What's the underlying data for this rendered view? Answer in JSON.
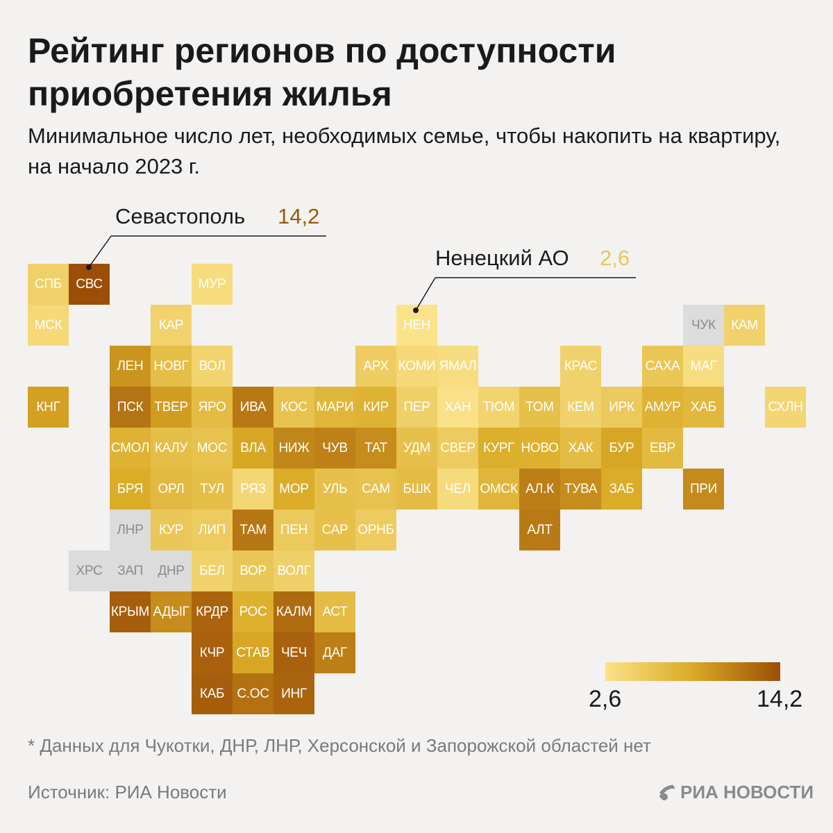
{
  "header": {
    "title": "Рейтинг регионов по доступности приобретения жилья",
    "subtitle": "Минимальное число лет, необходимых семье, чтобы накопить на квартиру, на начало 2023 г."
  },
  "colors": {
    "scale_min": "#fbe38a",
    "scale_mid": "#d9aa25",
    "scale_max": "#9c4e07",
    "nodata": "#dcdcdc",
    "callout_max": "#9a5a0c",
    "callout_min": "#e9c65a"
  },
  "chart_data": {
    "type": "heatmap",
    "title": "Рейтинг регионов по доступности приобретения жилья",
    "value_range": [
      2.6,
      14.2
    ],
    "legend": {
      "min_label": "2,6",
      "max_label": "14,2"
    },
    "annotations": [
      {
        "region": "СВС",
        "name": "Севастополь",
        "value_label": "14,2"
      },
      {
        "region": "НЕН",
        "name": "Ненецкий АО",
        "value_label": "2,6"
      }
    ],
    "rows": [
      [
        {
          "col": 0,
          "label": "СПБ",
          "value": 4.5
        },
        {
          "col": 1,
          "label": "СВС",
          "value": 14.2
        },
        {
          "col": 4,
          "label": "МУР",
          "value": 3.3
        }
      ],
      [
        {
          "col": 0,
          "label": "МСК",
          "value": 3.7
        },
        {
          "col": 3,
          "label": "КАР",
          "value": 4.3
        },
        {
          "col": 9,
          "label": "НЕН",
          "value": 2.6
        },
        {
          "col": 16,
          "label": "ЧУК",
          "value": null
        },
        {
          "col": 17,
          "label": "КАМ",
          "value": 4.4
        }
      ],
      [
        {
          "col": 2,
          "label": "ЛЕН",
          "value": 9.8
        },
        {
          "col": 3,
          "label": "НОВГ",
          "value": 6.4
        },
        {
          "col": 4,
          "label": "ВОЛ",
          "value": 4.2
        },
        {
          "col": 8,
          "label": "АРХ",
          "value": 4.9
        },
        {
          "col": 9,
          "label": "КОМИ",
          "value": 3.7
        },
        {
          "col": 10,
          "label": "ЯМАЛ",
          "value": 3.2
        },
        {
          "col": 13,
          "label": "КРАС",
          "value": 4.4
        },
        {
          "col": 15,
          "label": "САХА",
          "value": 5.6
        },
        {
          "col": 16,
          "label": "МАГ",
          "value": 3.2
        }
      ],
      [
        {
          "col": 0,
          "label": "КНГ",
          "value": 9.0
        },
        {
          "col": 2,
          "label": "ПСК",
          "value": 11.8
        },
        {
          "col": 3,
          "label": "ТВЕР",
          "value": 9.2
        },
        {
          "col": 4,
          "label": "ЯРО",
          "value": 6.6
        },
        {
          "col": 5,
          "label": "ИВА",
          "value": 11.5
        },
        {
          "col": 6,
          "label": "КОС",
          "value": 6.0
        },
        {
          "col": 7,
          "label": "МАРИ",
          "value": 7.2
        },
        {
          "col": 8,
          "label": "КИР",
          "value": 7.6
        },
        {
          "col": 9,
          "label": "ПЕР",
          "value": 4.6
        },
        {
          "col": 10,
          "label": "ХАН",
          "value": 2.8
        },
        {
          "col": 11,
          "label": "ТЮМ",
          "value": 4.2
        },
        {
          "col": 12,
          "label": "ТОМ",
          "value": 6.2
        },
        {
          "col": 13,
          "label": "КЕМ",
          "value": 4.4
        },
        {
          "col": 14,
          "label": "ИРК",
          "value": 5.2
        },
        {
          "col": 15,
          "label": "АМУР",
          "value": 7.6
        },
        {
          "col": 16,
          "label": "ХАБ",
          "value": 7.0
        },
        {
          "col": 18,
          "label": "СХЛН",
          "value": 4.0
        }
      ],
      [
        {
          "col": 2,
          "label": "СМОЛ",
          "value": 7.6
        },
        {
          "col": 3,
          "label": "КАЛУ",
          "value": 6.4
        },
        {
          "col": 4,
          "label": "МОС",
          "value": 6.0
        },
        {
          "col": 5,
          "label": "ВЛА",
          "value": 8.6
        },
        {
          "col": 6,
          "label": "НИЖ",
          "value": 10.6
        },
        {
          "col": 7,
          "label": "ЧУВ",
          "value": 11.0
        },
        {
          "col": 8,
          "label": "ТАТ",
          "value": 10.2
        },
        {
          "col": 9,
          "label": "УДМ",
          "value": 6.2
        },
        {
          "col": 10,
          "label": "СВЕР",
          "value": 5.0
        },
        {
          "col": 11,
          "label": "КУРГ",
          "value": 8.0
        },
        {
          "col": 12,
          "label": "НОВО",
          "value": 7.8
        },
        {
          "col": 13,
          "label": "ХАК",
          "value": 6.6
        },
        {
          "col": 14,
          "label": "БУР",
          "value": 8.6
        },
        {
          "col": 15,
          "label": "ЕВР",
          "value": 6.8
        }
      ],
      [
        {
          "col": 2,
          "label": "БРЯ",
          "value": 8.2
        },
        {
          "col": 3,
          "label": "ОРЛ",
          "value": 6.8
        },
        {
          "col": 4,
          "label": "ТУЛ",
          "value": 6.4
        },
        {
          "col": 5,
          "label": "РЯЗ",
          "value": 3.8
        },
        {
          "col": 6,
          "label": "МОР",
          "value": 8.2
        },
        {
          "col": 7,
          "label": "УЛЬ",
          "value": 6.2
        },
        {
          "col": 8,
          "label": "САМ",
          "value": 6.0
        },
        {
          "col": 9,
          "label": "БШК",
          "value": 6.6
        },
        {
          "col": 10,
          "label": "ЧЕЛ",
          "value": 3.4
        },
        {
          "col": 11,
          "label": "ОМСК",
          "value": 7.2
        },
        {
          "col": 12,
          "label": "АЛ.К",
          "value": 11.2
        },
        {
          "col": 13,
          "label": "ТУВА",
          "value": 10.2
        },
        {
          "col": 14,
          "label": "ЗАБ",
          "value": 8.2
        },
        {
          "col": 16,
          "label": "ПРИ",
          "value": 10.4
        }
      ],
      [
        {
          "col": 2,
          "label": "ЛНР",
          "value": null
        },
        {
          "col": 3,
          "label": "КУР",
          "value": 5.4
        },
        {
          "col": 4,
          "label": "ЛИП",
          "value": 5.0
        },
        {
          "col": 5,
          "label": "ТАМ",
          "value": 11.6
        },
        {
          "col": 6,
          "label": "ПЕН",
          "value": 5.2
        },
        {
          "col": 7,
          "label": "САР",
          "value": 6.2
        },
        {
          "col": 8,
          "label": "ОРНБ",
          "value": 5.0
        },
        {
          "col": 12,
          "label": "АЛТ",
          "value": 11.4
        }
      ],
      [
        {
          "col": 1,
          "label": "ХРС",
          "value": null
        },
        {
          "col": 2,
          "label": "ЗАП",
          "value": null
        },
        {
          "col": 3,
          "label": "ДНР",
          "value": null
        },
        {
          "col": 4,
          "label": "БЕЛ",
          "value": 4.4
        },
        {
          "col": 5,
          "label": "ВОР",
          "value": 5.6
        },
        {
          "col": 6,
          "label": "ВОЛГ",
          "value": 4.6
        }
      ],
      [
        {
          "col": 2,
          "label": "КРЫМ",
          "value": 13.2
        },
        {
          "col": 3,
          "label": "АДЫГ",
          "value": 10.2
        },
        {
          "col": 4,
          "label": "КРДР",
          "value": 12.8
        },
        {
          "col": 5,
          "label": "РОС",
          "value": 7.8
        },
        {
          "col": 6,
          "label": "КАЛМ",
          "value": 12.4
        },
        {
          "col": 7,
          "label": "АСТ",
          "value": 6.6
        }
      ],
      [
        {
          "col": 4,
          "label": "КЧР",
          "value": 13.0
        },
        {
          "col": 5,
          "label": "СТАВ",
          "value": 8.6
        },
        {
          "col": 6,
          "label": "ЧЕЧ",
          "value": 13.0
        },
        {
          "col": 7,
          "label": "ДАГ",
          "value": 11.2
        }
      ],
      [
        {
          "col": 4,
          "label": "КАБ",
          "value": 13.2
        },
        {
          "col": 5,
          "label": "С.ОС",
          "value": 12.0
        },
        {
          "col": 6,
          "label": "ИНГ",
          "value": 12.8
        }
      ]
    ]
  },
  "footnote": "* Данных для Чукотки, ДНР, ЛНР, Херсонской и Запорожской областей нет",
  "source": "Источник: РИА Новости",
  "brand": "РИА НОВОСТИ"
}
